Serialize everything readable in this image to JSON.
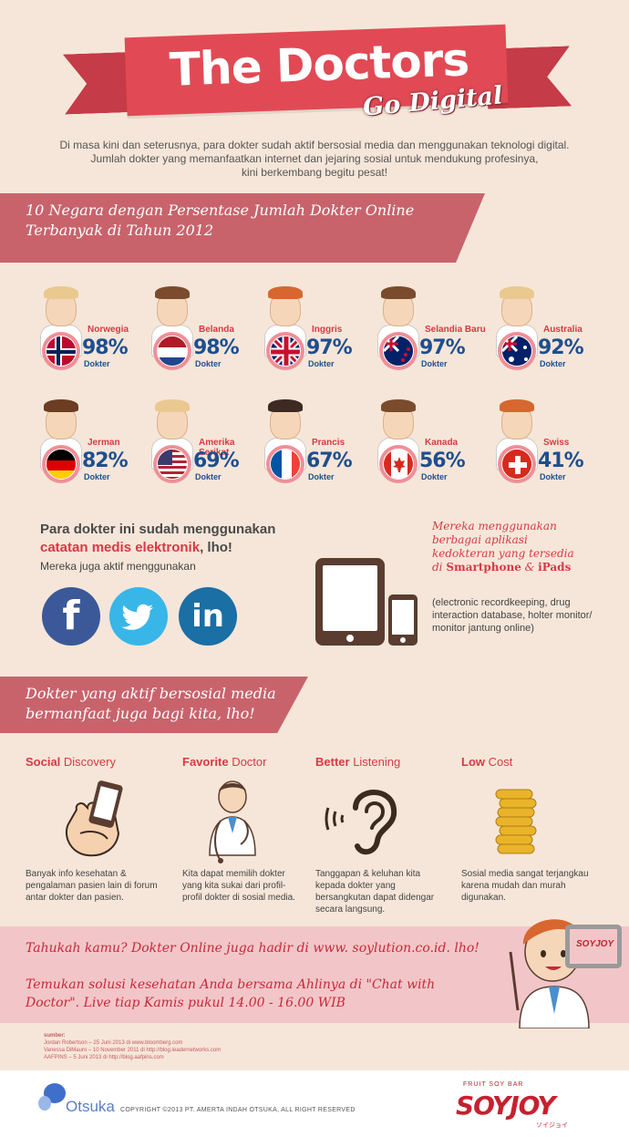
{
  "title": {
    "main": "The Doctors",
    "sub": "Go Digital"
  },
  "intro": [
    "Di masa kini dan seterusnya, para dokter sudah aktif bersosial media dan menggunakan teknologi digital.",
    "Jumlah dokter yang memanfaatkan internet dan jejaring sosial untuk mendukung profesinya,",
    "kini berkembang begitu pesat!"
  ],
  "section1": {
    "line1": "10 Negara dengan Persentase Jumlah Dokter Online",
    "line2": "Terbanyak di Tahun 2012"
  },
  "countries": [
    {
      "name": "Norwegia",
      "percent": "98%",
      "value": 98,
      "unit": "Dokter",
      "hair": "#e9c98f",
      "flag": "norway-flag-icon"
    },
    {
      "name": "Belanda",
      "percent": "98%",
      "value": 98,
      "unit": "Dokter",
      "hair": "#7a4b2c",
      "flag": "netherlands-flag-icon"
    },
    {
      "name": "Inggris",
      "percent": "97%",
      "value": 97,
      "unit": "Dokter",
      "hair": "#d7672e",
      "flag": "uk-flag-icon"
    },
    {
      "name": "Selandia Baru",
      "percent": "97%",
      "value": 97,
      "unit": "Dokter",
      "hair": "#7a4b2c",
      "flag": "new-zealand-flag-icon"
    },
    {
      "name": "Australia",
      "percent": "92%",
      "value": 92,
      "unit": "Dokter",
      "hair": "#e9c98f",
      "flag": "australia-flag-icon"
    },
    {
      "name": "Jerman",
      "percent": "82%",
      "value": 82,
      "unit": "Dokter",
      "hair": "#6b3d22",
      "flag": "germany-flag-icon"
    },
    {
      "name": "Amerika Serikat",
      "percent": "69%",
      "value": 69,
      "unit": "Dokter",
      "hair": "#e9c98f",
      "flag": "usa-flag-icon"
    },
    {
      "name": "Prancis",
      "percent": "67%",
      "value": 67,
      "unit": "Dokter",
      "hair": "#3d2a22",
      "flag": "france-flag-icon"
    },
    {
      "name": "Kanada",
      "percent": "56%",
      "value": 56,
      "unit": "Dokter",
      "hair": "#7a4b2c",
      "flag": "canada-flag-icon"
    },
    {
      "name": "Swiss",
      "percent": "41%",
      "value": 41,
      "unit": "Dokter",
      "hair": "#d7672e",
      "flag": "switzerland-flag-icon"
    }
  ],
  "middle": {
    "heading1": "Para dokter ini sudah menggunakan",
    "heading2_red": "catatan medis elektronik",
    "heading2_rest": ", lho!",
    "sub": "Mereka juga aktif menggunakan",
    "social": {
      "facebook": "f",
      "linkedin": "in"
    },
    "apps_line1": "Mereka menggunakan",
    "apps_line2": "berbagai aplikasi",
    "apps_line3": "kedokteran yang tersedia",
    "apps_line4_prefix": "di ",
    "apps_smartphone": "Smartphone",
    "apps_and": " & ",
    "apps_ipads": "iPads",
    "apps_note": "(electronic recordkeeping, drug interaction database, holter monitor/ monitor jantung online)"
  },
  "section2": {
    "line1": "Dokter yang aktif bersosial media",
    "line2": "bermanfaat juga bagi kita, lho!"
  },
  "benefits": [
    {
      "bold": "Social",
      "rest": " Discovery",
      "text": "Banyak info kesehatan & pengalaman pasien lain di forum antar dokter dan pasien."
    },
    {
      "bold": "Favorite",
      "rest": " Doctor",
      "text": "Kita dapat memilih dokter yang kita sukai dari profil-profil dokter di sosial media."
    },
    {
      "bold": "Better",
      "rest": " Listening",
      "text": "Tanggapan & keluhan kita kepada dokter yang bersangkutan dapat didengar secara langsung."
    },
    {
      "bold": "Low",
      "rest": " Cost",
      "text": "Sosial media sangat terjangkau karena mudah dan murah digunakan."
    }
  ],
  "promo": {
    "line1": "Tahukah kamu? Dokter Online juga hadir di www. soylution.co.id. lho!",
    "line2": "Temukan solusi kesehatan Anda bersama Ahlinya di \"Chat with",
    "line3": "Doctor\". Live tiap Kamis pukul 14.00 - 16.00 WIB",
    "badge": "SOYJOY"
  },
  "sources": {
    "label": "sumber:",
    "items": [
      "Jordan Robertson – 25 Juni 2013 di www.bloomberg.com",
      "Vanessa DiMauro – 10 November 2011 di http://blog.leadernetworks.com",
      "AAFPINS – 5 Juni 2013 di http://blog.aafpins.com"
    ]
  },
  "footer": {
    "otsuka": "Otsuka",
    "copyright": "COPYRIGHT ©2013 PT. AMERTA INDAH OTSUKA, ALL RIGHT RESERVED",
    "tagline": "FRUIT SOY BAR",
    "brand": "SOYJOY",
    "brand_jp": "ソイジョイ"
  }
}
